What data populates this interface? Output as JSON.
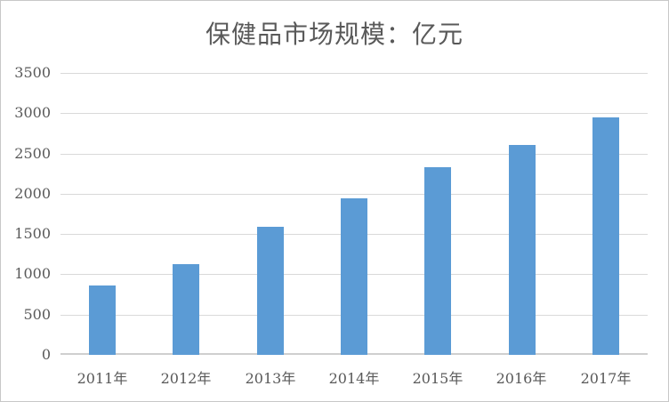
{
  "chart": {
    "title": "保健品市场规模：亿元",
    "colors": {
      "bar": "#5b9bd5",
      "gridline": "#d9d9d9",
      "axis_line": "#cfcfcf",
      "text": "#595959",
      "frame_border": "#c8c8c8",
      "background": "#ffffff"
    }
  },
  "chart_data": {
    "type": "bar",
    "title": "保健品市场规模：亿元",
    "categories": [
      "2011年",
      "2012年",
      "2013年",
      "2014年",
      "2015年",
      "2016年",
      "2017年"
    ],
    "values": [
      860,
      1130,
      1590,
      1940,
      2330,
      2610,
      2950
    ],
    "xlabel": "",
    "ylabel": "",
    "ylim": [
      0,
      3500
    ],
    "yticks": [
      0,
      500,
      1000,
      1500,
      2000,
      2500,
      3000,
      3500
    ],
    "grid": true,
    "legend_position": "none",
    "bar_color": "#5b9bd5"
  }
}
